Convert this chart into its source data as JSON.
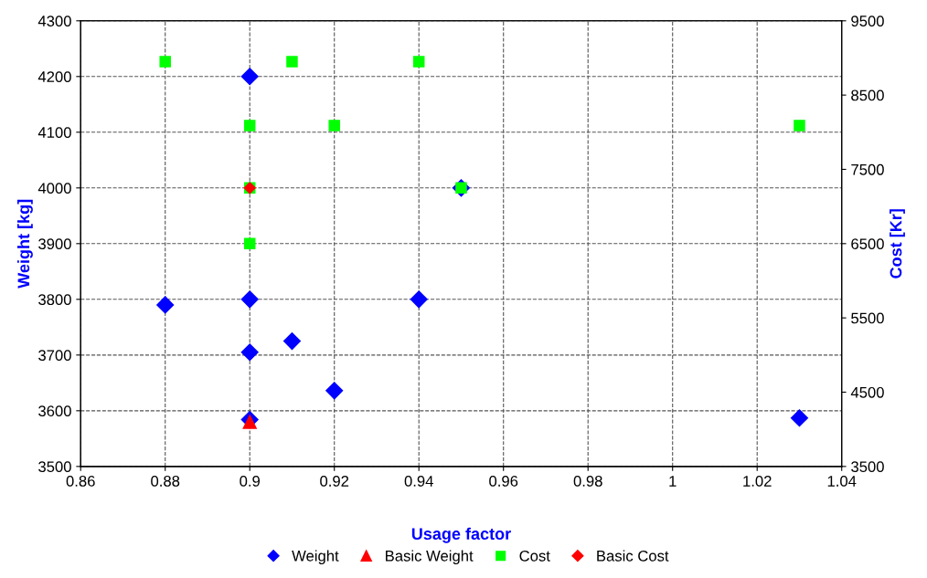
{
  "chart_data": {
    "type": "scatter",
    "xlabel": "Usage factor",
    "ylabel": "Weight [kg]",
    "y2label": "Cost [Kr]",
    "xlim": [
      0.86,
      1.04
    ],
    "xticks": [
      0.86,
      0.88,
      0.9,
      0.92,
      0.94,
      0.96,
      0.98,
      1,
      1.02,
      1.04
    ],
    "ylim": [
      3500,
      4300
    ],
    "yticks": [
      3500,
      3600,
      3700,
      3800,
      3900,
      4000,
      4100,
      4200,
      4300
    ],
    "y2lim": [
      3500,
      9500
    ],
    "y2ticks": [
      3500,
      4500,
      5500,
      6500,
      7500,
      8500,
      9500
    ],
    "grid": true,
    "legend": "bottom",
    "line_style": "dashed",
    "series": [
      {
        "name": "Weight",
        "color": "#0000ff",
        "marker": "diamond",
        "x": [
          0.9,
          0.88,
          0.9,
          0.94,
          0.91,
          0.9,
          0.92,
          0.9,
          1.03,
          0.95
        ],
        "values": [
          4200,
          3790,
          3800,
          3800,
          3725,
          3705,
          3636,
          3584,
          3587,
          4000
        ]
      },
      {
        "name": "Basic Weight",
        "color": "#ff0000",
        "marker": "triangle",
        "x": [
          0.9
        ],
        "values": [
          3580
        ]
      },
      {
        "name": "Cost",
        "color": "#00ff00",
        "marker": "square",
        "axis": "y2",
        "x": [
          0.88,
          0.91,
          0.94,
          0.9,
          0.92,
          1.03,
          0.9,
          0.95,
          0.9
        ],
        "values": [
          8950,
          8950,
          8950,
          8090,
          8090,
          8090,
          7250,
          7250,
          6500
        ]
      },
      {
        "name": "Basic Cost",
        "color": "#ff0000",
        "marker": "diamond",
        "axis": "y2",
        "x": [
          0.9
        ],
        "values": [
          7250
        ]
      }
    ]
  }
}
